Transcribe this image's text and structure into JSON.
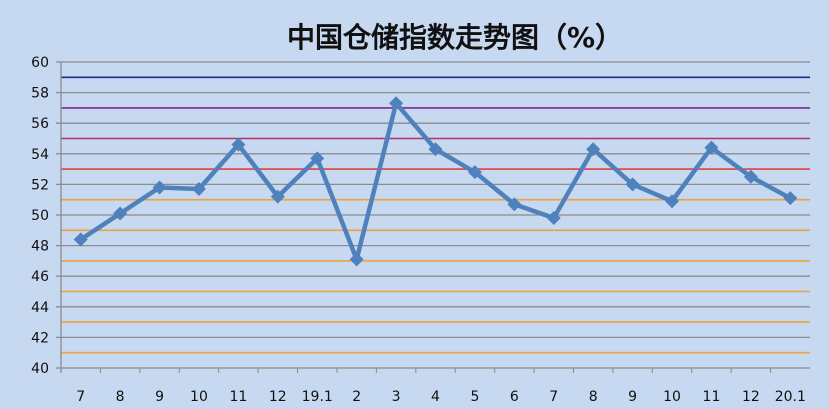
{
  "chart_data": {
    "type": "line",
    "title": "中国仓储指数走势图（%）",
    "xlabel": "",
    "ylabel": "",
    "categories": [
      "7",
      "8",
      "9",
      "10",
      "11",
      "12",
      "19.1",
      "2",
      "3",
      "4",
      "5",
      "6",
      "7",
      "8",
      "9",
      "10",
      "11",
      "12",
      "20.1"
    ],
    "series": [
      {
        "values": [
          48.4,
          50.1,
          51.8,
          51.7,
          54.6,
          51.2,
          53.7,
          47.1,
          57.3,
          54.3,
          52.8,
          50.7,
          49.8,
          54.3,
          52.0,
          50.9,
          54.4,
          52.5,
          51.1
        ],
        "color": "#4f81bd",
        "marker": "diamond"
      }
    ],
    "ylim": [
      40,
      60
    ],
    "yticks": [
      40,
      42,
      44,
      46,
      48,
      50,
      52,
      54,
      56,
      58,
      60
    ],
    "grid": true,
    "reference_lines": [
      {
        "y": 59,
        "color": "#1f2a8c"
      },
      {
        "y": 57,
        "color": "#7a2a9c"
      },
      {
        "y": 55,
        "color": "#b0306a"
      },
      {
        "y": 53,
        "color": "#e04040"
      },
      {
        "y": 51,
        "color": "#f0a040"
      },
      {
        "y": 49,
        "color": "#f0a040"
      },
      {
        "y": 47,
        "color": "#f0a040"
      },
      {
        "y": 45,
        "color": "#f0a040"
      },
      {
        "y": 43,
        "color": "#f0a040"
      },
      {
        "y": 41,
        "color": "#f0a040"
      }
    ],
    "background": "#c6d9f1",
    "legend": "none"
  }
}
